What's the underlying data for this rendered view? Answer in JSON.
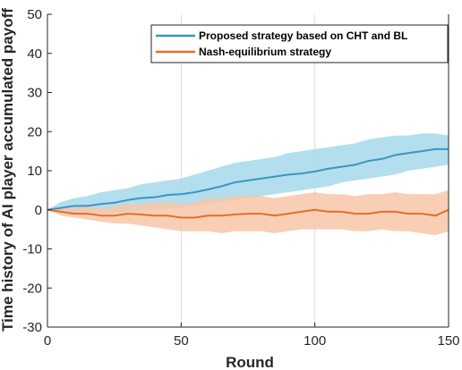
{
  "chart_data": {
    "type": "line",
    "xlabel": "Round",
    "ylabel": "Time history of AI player accumulated payoff",
    "xlim": [
      0,
      150
    ],
    "ylim": [
      -30,
      50
    ],
    "xticks": [
      0,
      50,
      100,
      150
    ],
    "yticks": [
      -30,
      -20,
      -10,
      0,
      10,
      20,
      30,
      40,
      50
    ],
    "grid": "vertical lines at x = 50, 100",
    "legend_position": "top-right",
    "colors": {
      "blue": "#3a96c3",
      "blue_band": "#a6d8ea",
      "orange": "#e2702a",
      "orange_band": "#f7c7a8",
      "axis": "#262626",
      "grid": "#dcdcdc"
    },
    "series": [
      {
        "name": "Proposed strategy based on CHT and BL",
        "color": "#3a96c3",
        "band_color": "#a6d8ea",
        "x": [
          0,
          5,
          10,
          15,
          20,
          25,
          30,
          35,
          40,
          45,
          50,
          55,
          60,
          65,
          70,
          75,
          80,
          85,
          90,
          95,
          100,
          105,
          110,
          115,
          120,
          125,
          130,
          135,
          140,
          145,
          150
        ],
        "mean": [
          0,
          0.5,
          1.0,
          1.0,
          1.5,
          1.8,
          2.5,
          3.0,
          3.2,
          3.8,
          4.0,
          4.5,
          5.2,
          6.0,
          7.0,
          7.5,
          8.0,
          8.5,
          9.0,
          9.3,
          9.8,
          10.5,
          11.0,
          11.5,
          12.5,
          13.0,
          14.0,
          14.5,
          15.0,
          15.5,
          15.5
        ],
        "upper": [
          0,
          2.0,
          3.0,
          3.5,
          4.5,
          5.0,
          5.5,
          6.5,
          7.0,
          7.5,
          8.0,
          9.0,
          10.0,
          11.0,
          12.0,
          12.5,
          13.0,
          13.5,
          14.5,
          15.0,
          15.5,
          16.0,
          16.5,
          17.0,
          18.0,
          18.5,
          19.0,
          19.0,
          19.5,
          19.5,
          19.0
        ],
        "lower": [
          0,
          -1.0,
          -1.0,
          -1.2,
          -1.0,
          -0.8,
          -0.5,
          0.0,
          0.0,
          0.2,
          0.5,
          1.0,
          1.5,
          2.0,
          2.5,
          3.0,
          3.5,
          4.0,
          4.5,
          5.0,
          5.5,
          6.0,
          7.0,
          7.5,
          8.0,
          8.5,
          9.0,
          10.0,
          10.5,
          11.0,
          11.5
        ]
      },
      {
        "name": "Nash-equilibrium strategy",
        "color": "#e2702a",
        "band_color": "#f7c7a8",
        "x": [
          0,
          5,
          10,
          15,
          20,
          25,
          30,
          35,
          40,
          45,
          50,
          55,
          60,
          65,
          70,
          75,
          80,
          85,
          90,
          95,
          100,
          105,
          110,
          115,
          120,
          125,
          130,
          135,
          140,
          145,
          150
        ],
        "mean": [
          0,
          -0.5,
          -1.0,
          -1.0,
          -1.5,
          -1.5,
          -1.0,
          -1.2,
          -1.5,
          -1.5,
          -2.0,
          -2.0,
          -1.5,
          -1.5,
          -1.2,
          -1.0,
          -1.0,
          -1.5,
          -1.0,
          -0.5,
          0.0,
          -0.5,
          -0.5,
          -1.0,
          -1.0,
          -0.5,
          -0.5,
          -1.0,
          -1.0,
          -1.5,
          0.0
        ],
        "upper": [
          0,
          0.5,
          0.5,
          1.0,
          0.5,
          1.0,
          1.5,
          1.5,
          2.0,
          2.0,
          1.5,
          2.0,
          3.0,
          3.0,
          3.5,
          3.5,
          3.5,
          3.0,
          3.5,
          4.0,
          4.5,
          4.0,
          4.0,
          3.5,
          4.0,
          4.0,
          4.5,
          4.0,
          4.0,
          4.0,
          5.0
        ],
        "lower": [
          0,
          -1.5,
          -2.0,
          -2.5,
          -3.0,
          -3.5,
          -3.5,
          -4.0,
          -4.5,
          -5.0,
          -5.5,
          -5.5,
          -5.5,
          -6.0,
          -5.5,
          -5.5,
          -5.5,
          -6.0,
          -5.5,
          -5.0,
          -5.0,
          -5.0,
          -5.0,
          -5.5,
          -5.5,
          -5.0,
          -5.5,
          -5.5,
          -6.0,
          -6.5,
          -5.5
        ]
      }
    ]
  }
}
